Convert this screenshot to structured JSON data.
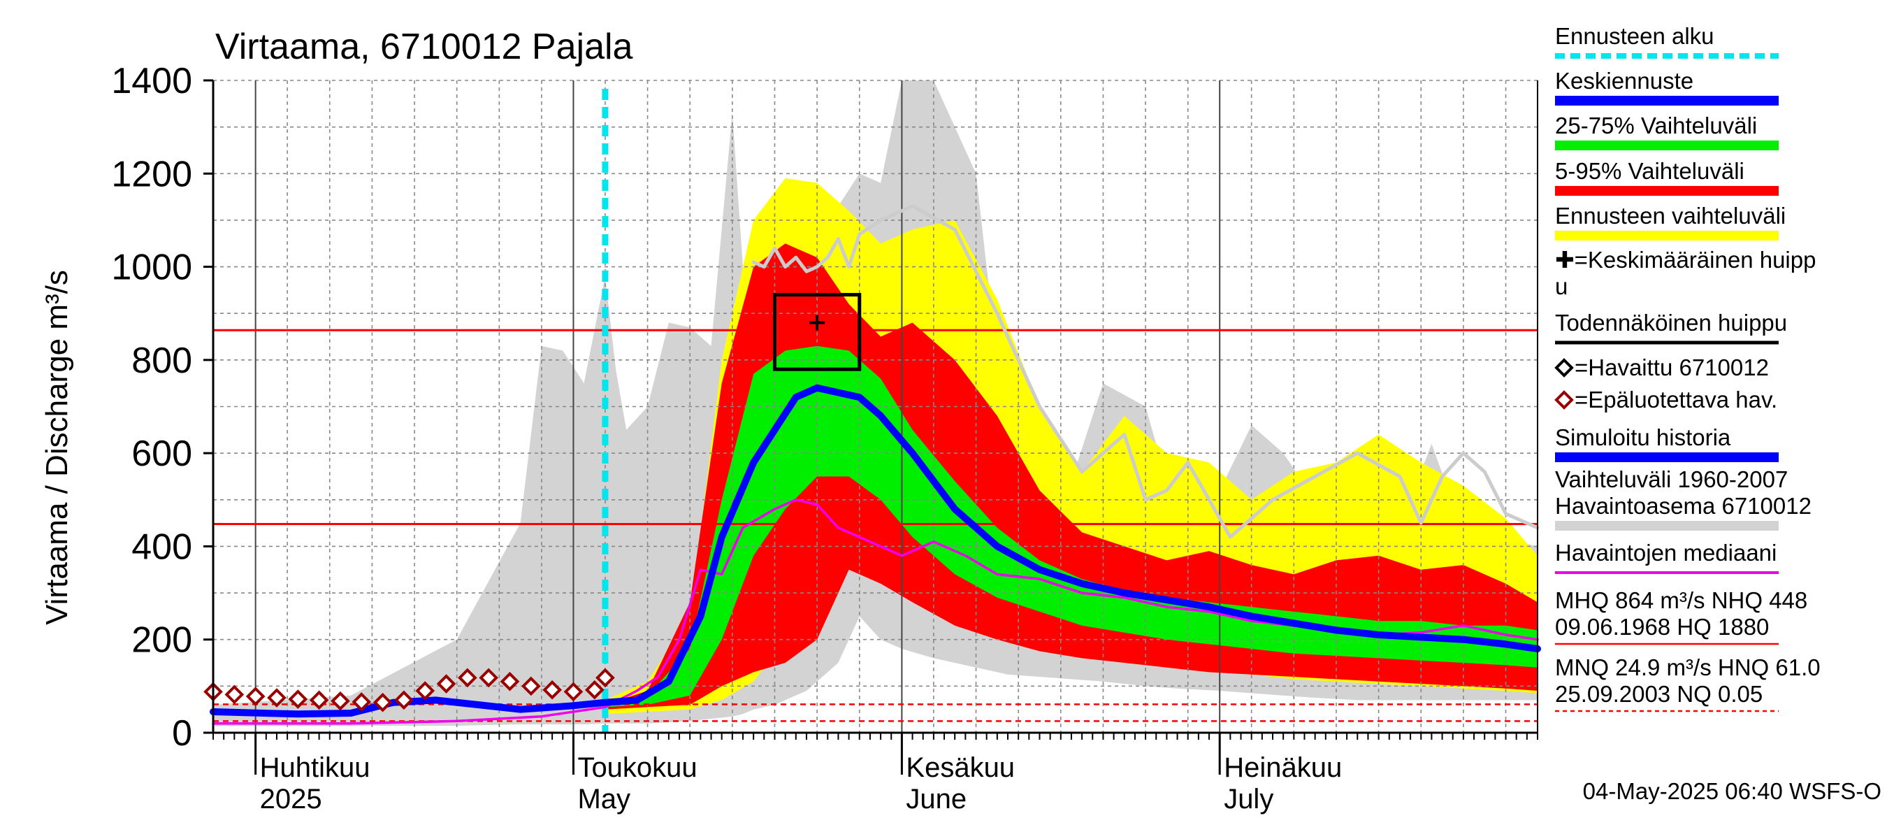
{
  "chart_data": {
    "type": "area",
    "title": "Virtaama, 6710012 Pajala",
    "ylabel": "Virtaama / Discharge   m³/s",
    "ylim": [
      0,
      1400
    ],
    "y_ticks": [
      "0",
      "200",
      "400",
      "600",
      "800",
      "1000",
      "1200",
      "1400"
    ],
    "x_range": [
      "2025-03-28",
      "2025-07-31"
    ],
    "x_month_labels": [
      {
        "date": "2025-04-01",
        "fi": "Huhtikuu",
        "en": "2025"
      },
      {
        "date": "2025-05-01",
        "fi": "Toukokuu",
        "en": "May"
      },
      {
        "date": "2025-06-01",
        "fi": "Kesäkuu",
        "en": "June"
      },
      {
        "date": "2025-07-01",
        "fi": "Heinäkuu",
        "en": "July"
      }
    ],
    "grid": true,
    "forecast_start": "2025-05-04",
    "colors": {
      "history_range": "#d3d3d3",
      "forecast_range": "#ffff00",
      "p5_95": "#ff0000",
      "p25_75": "#00ee00",
      "mean_forecast": "#0000ff",
      "median_obs": "#ee00ee",
      "observed_unreliable": "#990000",
      "forecast_start_line": "#00e5ee",
      "threshold": "#ff0000"
    },
    "reference_lines": [
      {
        "name": "MHQ",
        "value": 864,
        "style": "solid"
      },
      {
        "name": "NHQ",
        "value": 448,
        "style": "solid"
      },
      {
        "name": "MNQ",
        "value": 24.9,
        "style": "dashed"
      },
      {
        "name": "HNQ",
        "value": 61.0,
        "style": "dashed"
      }
    ],
    "probable_peak_box": {
      "x0": "2025-05-20",
      "x1": "2025-05-28",
      "y0": 780,
      "y1": 940
    },
    "mean_peak_marker": {
      "x": "2025-05-24",
      "y": 880
    },
    "series": [
      {
        "name": "Vaihteluväli 1960-2007 Havaintoasema 6710012",
        "kind": "band",
        "x": [
          "2025-03-28",
          "2025-04-10",
          "2025-04-20",
          "2025-04-26",
          "2025-04-28",
          "2025-04-30",
          "2025-05-02",
          "2025-05-04",
          "2025-05-05",
          "2025-05-06",
          "2025-05-08",
          "2025-05-10",
          "2025-05-12",
          "2025-05-14",
          "2025-05-16",
          "2025-05-17",
          "2025-05-18",
          "2025-05-20",
          "2025-05-23",
          "2025-05-26",
          "2025-05-28",
          "2025-05-30",
          "2025-06-01",
          "2025-06-04",
          "2025-06-08",
          "2025-06-11",
          "2025-06-14",
          "2025-06-17",
          "2025-06-20",
          "2025-06-24",
          "2025-06-27",
          "2025-07-01",
          "2025-07-04",
          "2025-07-07",
          "2025-07-10",
          "2025-07-14",
          "2025-07-18",
          "2025-07-21",
          "2025-07-24",
          "2025-07-27",
          "2025-07-31"
        ],
        "low": [
          15,
          15,
          15,
          18,
          18,
          18,
          18,
          20,
          20,
          20,
          20,
          22,
          25,
          30,
          35,
          40,
          50,
          60,
          90,
          150,
          250,
          200,
          180,
          160,
          140,
          125,
          120,
          115,
          110,
          100,
          95,
          90,
          85,
          80,
          75,
          70,
          70,
          70,
          70,
          70,
          70
        ],
        "high": [
          60,
          80,
          200,
          450,
          830,
          820,
          750,
          980,
          780,
          650,
          700,
          880,
          870,
          830,
          1330,
          1000,
          970,
          1000,
          1050,
          1130,
          1200,
          1180,
          1400,
          1400,
          1200,
          600,
          500,
          540,
          750,
          700,
          460,
          520,
          660,
          600,
          500,
          460,
          440,
          620,
          430,
          420,
          400
        ]
      },
      {
        "name": "Ennusteen vaihteluväli",
        "kind": "band",
        "x": [
          "2025-05-04",
          "2025-05-08",
          "2025-05-12",
          "2025-05-15",
          "2025-05-18",
          "2025-05-21",
          "2025-05-24",
          "2025-05-27",
          "2025-05-30",
          "2025-06-02",
          "2025-06-06",
          "2025-06-10",
          "2025-06-14",
          "2025-06-18",
          "2025-06-22",
          "2025-06-26",
          "2025-06-30",
          "2025-07-04",
          "2025-07-08",
          "2025-07-12",
          "2025-07-16",
          "2025-07-20",
          "2025-07-24",
          "2025-07-28",
          "2025-07-31"
        ],
        "low": [
          40,
          45,
          50,
          70,
          110,
          200,
          320,
          380,
          350,
          300,
          250,
          210,
          190,
          170,
          155,
          145,
          135,
          125,
          115,
          110,
          105,
          100,
          95,
          90,
          85
        ],
        "high": [
          70,
          110,
          250,
          800,
          1100,
          1190,
          1180,
          1120,
          1050,
          1080,
          1100,
          930,
          700,
          560,
          680,
          600,
          580,
          500,
          560,
          580,
          640,
          580,
          530,
          460,
          380
        ]
      },
      {
        "name": "5-95% Vaihteluväli",
        "kind": "band",
        "x": [
          "2025-05-04",
          "2025-05-08",
          "2025-05-12",
          "2025-05-15",
          "2025-05-18",
          "2025-05-21",
          "2025-05-24",
          "2025-05-27",
          "2025-05-30",
          "2025-06-02",
          "2025-06-06",
          "2025-06-10",
          "2025-06-14",
          "2025-06-18",
          "2025-06-22",
          "2025-06-26",
          "2025-06-30",
          "2025-07-04",
          "2025-07-08",
          "2025-07-12",
          "2025-07-16",
          "2025-07-20",
          "2025-07-24",
          "2025-07-28",
          "2025-07-31"
        ],
        "low": [
          50,
          55,
          60,
          100,
          130,
          150,
          200,
          350,
          320,
          280,
          230,
          200,
          175,
          160,
          150,
          140,
          130,
          125,
          120,
          115,
          110,
          105,
          100,
          95,
          90
        ],
        "high": [
          60,
          90,
          280,
          750,
          1000,
          1050,
          1020,
          920,
          850,
          880,
          800,
          680,
          520,
          430,
          400,
          370,
          390,
          360,
          340,
          370,
          380,
          350,
          360,
          320,
          280
        ]
      },
      {
        "name": "25-75% Vaihteluväli",
        "kind": "band",
        "x": [
          "2025-05-04",
          "2025-05-08",
          "2025-05-12",
          "2025-05-15",
          "2025-05-18",
          "2025-05-21",
          "2025-05-24",
          "2025-05-27",
          "2025-05-30",
          "2025-06-02",
          "2025-06-06",
          "2025-06-10",
          "2025-06-14",
          "2025-06-18",
          "2025-06-22",
          "2025-06-26",
          "2025-06-30",
          "2025-07-04",
          "2025-07-08",
          "2025-07-12",
          "2025-07-16",
          "2025-07-20",
          "2025-07-24",
          "2025-07-28",
          "2025-07-31"
        ],
        "low": [
          55,
          60,
          80,
          200,
          380,
          480,
          550,
          550,
          500,
          420,
          340,
          290,
          260,
          230,
          215,
          200,
          190,
          180,
          170,
          165,
          160,
          155,
          150,
          145,
          140
        ],
        "high": [
          65,
          80,
          180,
          500,
          770,
          820,
          830,
          820,
          760,
          650,
          540,
          440,
          370,
          330,
          305,
          290,
          280,
          270,
          260,
          250,
          240,
          240,
          230,
          230,
          220
        ]
      },
      {
        "name": "Keskiennuste",
        "kind": "line",
        "x": [
          "2025-03-28",
          "2025-04-05",
          "2025-04-10",
          "2025-04-14",
          "2025-04-18",
          "2025-04-22",
          "2025-04-26",
          "2025-05-01",
          "2025-05-04",
          "2025-05-07",
          "2025-05-10",
          "2025-05-13",
          "2025-05-15",
          "2025-05-18",
          "2025-05-20",
          "2025-05-22",
          "2025-05-24",
          "2025-05-26",
          "2025-05-28",
          "2025-05-30",
          "2025-06-02",
          "2025-06-06",
          "2025-06-10",
          "2025-06-14",
          "2025-06-18",
          "2025-06-22",
          "2025-06-26",
          "2025-06-30",
          "2025-07-04",
          "2025-07-08",
          "2025-07-12",
          "2025-07-16",
          "2025-07-20",
          "2025-07-24",
          "2025-07-28",
          "2025-07-31"
        ],
        "y": [
          45,
          40,
          42,
          65,
          70,
          60,
          50,
          58,
          65,
          70,
          110,
          250,
          420,
          580,
          650,
          720,
          740,
          730,
          720,
          680,
          600,
          480,
          400,
          350,
          320,
          300,
          285,
          270,
          250,
          235,
          220,
          210,
          205,
          200,
          190,
          180
        ]
      },
      {
        "name": "Havaintojen mediaani",
        "kind": "line",
        "x": [
          "2025-03-28",
          "2025-04-10",
          "2025-04-20",
          "2025-04-28",
          "2025-05-04",
          "2025-05-07",
          "2025-05-09",
          "2025-05-11",
          "2025-05-13",
          "2025-05-15",
          "2025-05-17",
          "2025-05-20",
          "2025-05-22",
          "2025-05-24",
          "2025-05-26",
          "2025-05-28",
          "2025-05-30",
          "2025-06-01",
          "2025-06-04",
          "2025-06-07",
          "2025-06-10",
          "2025-06-14",
          "2025-06-18",
          "2025-06-22",
          "2025-06-26",
          "2025-06-30",
          "2025-07-04",
          "2025-07-08",
          "2025-07-12",
          "2025-07-16",
          "2025-07-20",
          "2025-07-24",
          "2025-07-28",
          "2025-07-31"
        ],
        "y": [
          20,
          20,
          25,
          35,
          55,
          90,
          120,
          200,
          350,
          340,
          440,
          480,
          500,
          490,
          440,
          420,
          400,
          380,
          410,
          380,
          340,
          330,
          300,
          290,
          270,
          260,
          240,
          230,
          220,
          210,
          215,
          230,
          210,
          200
        ]
      },
      {
        "name": "Simuloitu historia",
        "kind": "line_light",
        "x": [
          "2025-05-18",
          "2025-05-19",
          "2025-05-20",
          "2025-05-21",
          "2025-05-22",
          "2025-05-23",
          "2025-05-24",
          "2025-05-25",
          "2025-05-26",
          "2025-05-27",
          "2025-05-28",
          "2025-05-30",
          "2025-06-02",
          "2025-06-06",
          "2025-06-10",
          "2025-06-14",
          "2025-06-18",
          "2025-06-22",
          "2025-06-24",
          "2025-06-26",
          "2025-06-28",
          "2025-07-02",
          "2025-07-06",
          "2025-07-10",
          "2025-07-14",
          "2025-07-18",
          "2025-07-20",
          "2025-07-22",
          "2025-07-24",
          "2025-07-26",
          "2025-07-28",
          "2025-07-31"
        ],
        "y": [
          1010,
          1000,
          1040,
          1000,
          1020,
          990,
          1000,
          1020,
          1060,
          1000,
          1070,
          1100,
          1130,
          1080,
          900,
          700,
          560,
          640,
          500,
          520,
          580,
          420,
          500,
          550,
          600,
          550,
          450,
          550,
          600,
          560,
          470,
          440
        ]
      },
      {
        "name": "=Epäluotettava hav.",
        "kind": "markers",
        "x": [
          "2025-03-28",
          "2025-03-30",
          "2025-04-01",
          "2025-04-03",
          "2025-04-05",
          "2025-04-07",
          "2025-04-09",
          "2025-04-11",
          "2025-04-13",
          "2025-04-15",
          "2025-04-17",
          "2025-04-19",
          "2025-04-21",
          "2025-04-23",
          "2025-04-25",
          "2025-04-27",
          "2025-04-29",
          "2025-05-01",
          "2025-05-03",
          "2025-05-04"
        ],
        "y": [
          88,
          82,
          78,
          75,
          72,
          70,
          68,
          66,
          65,
          70,
          90,
          105,
          118,
          118,
          110,
          100,
          92,
          88,
          92,
          118
        ]
      }
    ],
    "legend": [
      {
        "label": "Ennusteen alku",
        "symbol": "dashed-cyan"
      },
      {
        "label": "Keskiennuste",
        "symbol": "blue-bar"
      },
      {
        "label": "25-75% Vaihteluväli",
        "symbol": "green-bar"
      },
      {
        "label": "5-95% Vaihteluväli",
        "symbol": "red-bar"
      },
      {
        "label": "Ennusteen vaihteluväli",
        "symbol": "yellow-bar"
      },
      {
        "label": "✚=Keskimääräinen huipp",
        "label2": "u",
        "symbol": "none"
      },
      {
        "label": "Todennäköinen huippu",
        "symbol": "black-line"
      },
      {
        "label": "=Havaittu 6710012",
        "symbol": "black-diamond"
      },
      {
        "label": "=Epäluotettava hav.",
        "symbol": "red-diamond"
      },
      {
        "label": "Simuloitu historia",
        "symbol": "blue-bar"
      },
      {
        "label": "Vaihteluväli 1960-2007",
        "label2": " Havaintoasema 6710012",
        "symbol": "grey-bar"
      },
      {
        "label": "Havaintojen mediaani",
        "symbol": "magenta-line"
      },
      {
        "label": "MHQ  864 m³/s NHQ  448",
        "label2": "09.06.1968 HQ 1880",
        "symbol": "red-thin"
      },
      {
        "label": "MNQ 24.9 m³/s HNQ 61.0",
        "label2": "25.09.2003 NQ 0.05",
        "symbol": "red-dashed-thin"
      }
    ],
    "timestamp": "04-May-2025 06:40 WSFS-O"
  }
}
